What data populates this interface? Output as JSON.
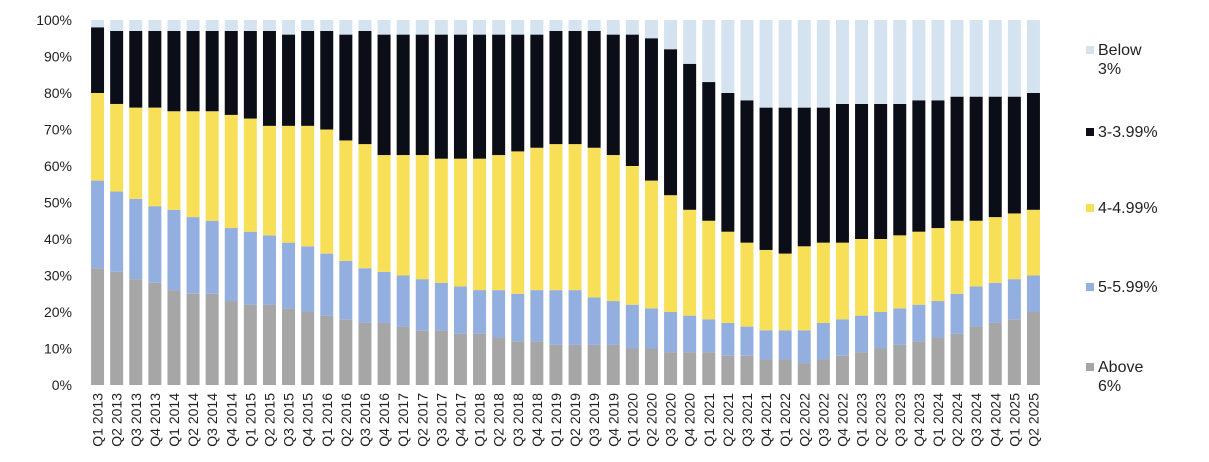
{
  "chart_data": {
    "type": "bar",
    "stacked": true,
    "normalized": true,
    "categories": [
      "Q1 2013",
      "Q2 2013",
      "Q3 2013",
      "Q4 2013",
      "Q1 2014",
      "Q2 2014",
      "Q3 2014",
      "Q4 2014",
      "Q1 2015",
      "Q2 2015",
      "Q3 2015",
      "Q4 2015",
      "Q1 2016",
      "Q2 2016",
      "Q3 2016",
      "Q4 2016",
      "Q1 2017",
      "Q2 2017",
      "Q3 2017",
      "Q4 2017",
      "Q1 2018",
      "Q2 2018",
      "Q3 2018",
      "Q4 2018",
      "Q1 2019",
      "Q2 2019",
      "Q3 2019",
      "Q4 2019",
      "Q1 2020",
      "Q2 2020",
      "Q3 2020",
      "Q4 2020",
      "Q1 2021",
      "Q2 2021",
      "Q3 2021",
      "Q4 2021",
      "Q1 2022",
      "Q2 2022",
      "Q3 2022",
      "Q4 2022",
      "Q1 2023",
      "Q2 2023",
      "Q3 2023",
      "Q4 2023",
      "Q1 2024",
      "Q2 2024",
      "Q3 2024",
      "Q4 2024",
      "Q1 2025",
      "Q2 2025"
    ],
    "series": [
      {
        "name": "Above 6%",
        "color": "#a6a6a6",
        "values": [
          32,
          31,
          29,
          28,
          26,
          25,
          25,
          23,
          22,
          22,
          21,
          20,
          19,
          18,
          17,
          17,
          16,
          15,
          15,
          14,
          14,
          13,
          12,
          12,
          11,
          11,
          11,
          11,
          10,
          10,
          9,
          9,
          9,
          8,
          8,
          7,
          7,
          6,
          7,
          8,
          9,
          10,
          11,
          12,
          13,
          14,
          16,
          17,
          18,
          20
        ]
      },
      {
        "name": "5-5.99%",
        "color": "#93afe0",
        "values": [
          24,
          22,
          22,
          21,
          22,
          21,
          20,
          20,
          20,
          19,
          18,
          18,
          17,
          16,
          15,
          14,
          14,
          14,
          13,
          13,
          12,
          13,
          13,
          14,
          15,
          15,
          13,
          12,
          12,
          11,
          11,
          10,
          9,
          9,
          8,
          8,
          8,
          9,
          10,
          10,
          10,
          10,
          10,
          10,
          10,
          11,
          11,
          11,
          11,
          10
        ]
      },
      {
        "name": "4-4.99%",
        "color": "#f7df58",
        "values": [
          24,
          24,
          25,
          27,
          27,
          29,
          30,
          31,
          31,
          30,
          32,
          33,
          34,
          33,
          34,
          32,
          33,
          34,
          34,
          35,
          36,
          37,
          39,
          39,
          40,
          40,
          41,
          40,
          38,
          35,
          32,
          29,
          27,
          25,
          23,
          22,
          21,
          23,
          22,
          21,
          21,
          20,
          20,
          20,
          20,
          20,
          18,
          18,
          18,
          18
        ]
      },
      {
        "name": "3-3.99%",
        "color": "#0b0d17",
        "values": [
          18,
          20,
          21,
          21,
          22,
          22,
          22,
          23,
          24,
          26,
          25,
          26,
          27,
          29,
          31,
          33,
          33,
          33,
          34,
          34,
          34,
          33,
          32,
          31,
          31,
          31,
          32,
          33,
          36,
          39,
          40,
          40,
          38,
          38,
          39,
          39,
          40,
          38,
          37,
          38,
          37,
          37,
          36,
          36,
          35,
          34,
          34,
          33,
          32,
          32
        ]
      },
      {
        "name": "Below 3%",
        "color": "#d5e3f1",
        "values": [
          2,
          3,
          3,
          3,
          3,
          3,
          3,
          3,
          3,
          3,
          4,
          3,
          3,
          4,
          3,
          4,
          4,
          4,
          4,
          4,
          4,
          4,
          4,
          4,
          3,
          3,
          3,
          4,
          4,
          5,
          8,
          12,
          17,
          20,
          22,
          24,
          24,
          24,
          24,
          23,
          23,
          23,
          23,
          22,
          22,
          21,
          21,
          21,
          21,
          20
        ]
      }
    ],
    "ylim": [
      0,
      100
    ],
    "yticks": [
      "0%",
      "10%",
      "20%",
      "30%",
      "40%",
      "50%",
      "60%",
      "70%",
      "80%",
      "90%",
      "100%"
    ],
    "legend_position": "right",
    "legend": [
      {
        "lines": [
          "Below",
          "3%"
        ],
        "color": "#d5e3f1"
      },
      {
        "lines": [
          "3-3.99%"
        ],
        "color": "#0b0d17"
      },
      {
        "lines": [
          "4-4.99%"
        ],
        "color": "#f7df58"
      },
      {
        "lines": [
          "5-5.99%"
        ],
        "color": "#93afe0"
      },
      {
        "lines": [
          "Above",
          "6%"
        ],
        "color": "#a6a6a6"
      }
    ]
  }
}
